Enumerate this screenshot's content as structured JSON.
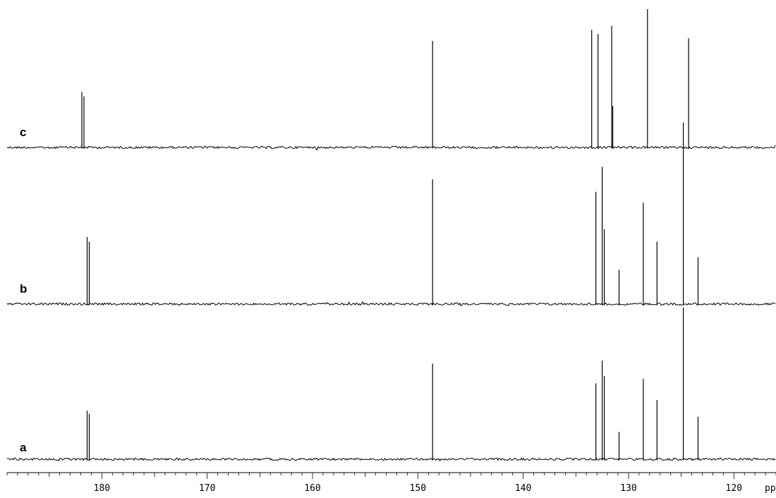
{
  "chart_data": {
    "type": "line",
    "title": "",
    "xlabel": "ppm",
    "ylabel": "",
    "x_reversed": true,
    "xlim": [
      189,
      116
    ],
    "major_ticks": [
      180,
      170,
      160,
      150,
      140,
      130,
      120
    ],
    "tick_labels": [
      "180",
      "170",
      "160",
      "150",
      "140",
      "130",
      "120"
    ],
    "minor_tick_step": 1,
    "grid": false,
    "legend": "none",
    "series": [
      {
        "name": "c",
        "peaks": [
          {
            "ppm": 181.9,
            "height": 0.4
          },
          {
            "ppm": 181.7,
            "height": 0.37
          },
          {
            "ppm": 148.6,
            "height": 0.77
          },
          {
            "ppm": 133.5,
            "height": 0.85
          },
          {
            "ppm": 132.9,
            "height": 0.82
          },
          {
            "ppm": 131.6,
            "height": 0.88
          },
          {
            "ppm": 131.5,
            "height": 0.3
          },
          {
            "ppm": 128.2,
            "height": 1.0
          },
          {
            "ppm": 124.8,
            "height": 0.18
          },
          {
            "ppm": 124.3,
            "height": 0.79
          }
        ]
      },
      {
        "name": "b",
        "peaks": [
          {
            "ppm": 181.4,
            "height": 0.43
          },
          {
            "ppm": 181.2,
            "height": 0.4
          },
          {
            "ppm": 148.6,
            "height": 0.8
          },
          {
            "ppm": 133.1,
            "height": 0.72
          },
          {
            "ppm": 132.5,
            "height": 0.88
          },
          {
            "ppm": 132.3,
            "height": 0.48
          },
          {
            "ppm": 130.9,
            "height": 0.22
          },
          {
            "ppm": 128.6,
            "height": 0.65
          },
          {
            "ppm": 127.3,
            "height": 0.4
          },
          {
            "ppm": 124.8,
            "height": 1.0
          },
          {
            "ppm": 123.4,
            "height": 0.3
          }
        ]
      },
      {
        "name": "a",
        "peaks": [
          {
            "ppm": 181.4,
            "height": 0.32
          },
          {
            "ppm": 181.2,
            "height": 0.3
          },
          {
            "ppm": 148.6,
            "height": 0.63
          },
          {
            "ppm": 133.1,
            "height": 0.5
          },
          {
            "ppm": 132.5,
            "height": 0.65
          },
          {
            "ppm": 132.3,
            "height": 0.55
          },
          {
            "ppm": 130.9,
            "height": 0.18
          },
          {
            "ppm": 128.6,
            "height": 0.53
          },
          {
            "ppm": 127.3,
            "height": 0.39
          },
          {
            "ppm": 124.8,
            "height": 1.0
          },
          {
            "ppm": 123.4,
            "height": 0.28
          }
        ]
      }
    ]
  }
}
